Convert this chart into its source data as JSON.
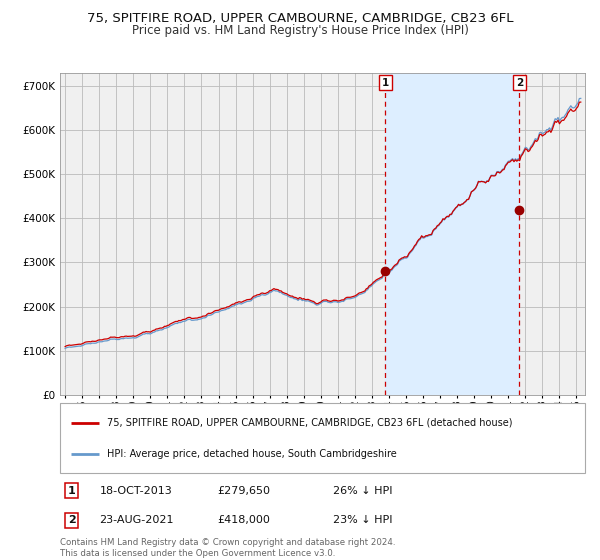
{
  "title": "75, SPITFIRE ROAD, UPPER CAMBOURNE, CAMBRIDGE, CB23 6FL",
  "subtitle": "Price paid vs. HM Land Registry's House Price Index (HPI)",
  "title_fontsize": 9.5,
  "subtitle_fontsize": 8.5,
  "xlim": [
    1994.7,
    2025.5
  ],
  "ylim": [
    0,
    730000
  ],
  "yticks": [
    0,
    100000,
    200000,
    300000,
    400000,
    500000,
    600000,
    700000
  ],
  "ytick_labels": [
    "£0",
    "£100K",
    "£200K",
    "£300K",
    "£400K",
    "£500K",
    "£600K",
    "£700K"
  ],
  "sale1_date_num": 2013.79,
  "sale1_price": 279650,
  "sale1_label": "1",
  "sale2_date_num": 2021.65,
  "sale2_price": 418000,
  "sale2_label": "2",
  "red_line_color": "#cc0000",
  "blue_line_color": "#6699cc",
  "shade_color": "#ddeeff",
  "grid_color": "#bbbbbb",
  "bg_color": "#f0f0f0",
  "legend_entry1": "75, SPITFIRE ROAD, UPPER CAMBOURNE, CAMBRIDGE, CB23 6FL (detached house)",
  "legend_entry2": "HPI: Average price, detached house, South Cambridgeshire",
  "footer1": "Contains HM Land Registry data © Crown copyright and database right 2024.",
  "footer2": "This data is licensed under the Open Government Licence v3.0.",
  "table_row1": [
    "1",
    "18-OCT-2013",
    "£279,650",
    "26% ↓ HPI"
  ],
  "table_row2": [
    "2",
    "23-AUG-2021",
    "£418,000",
    "23% ↓ HPI"
  ]
}
